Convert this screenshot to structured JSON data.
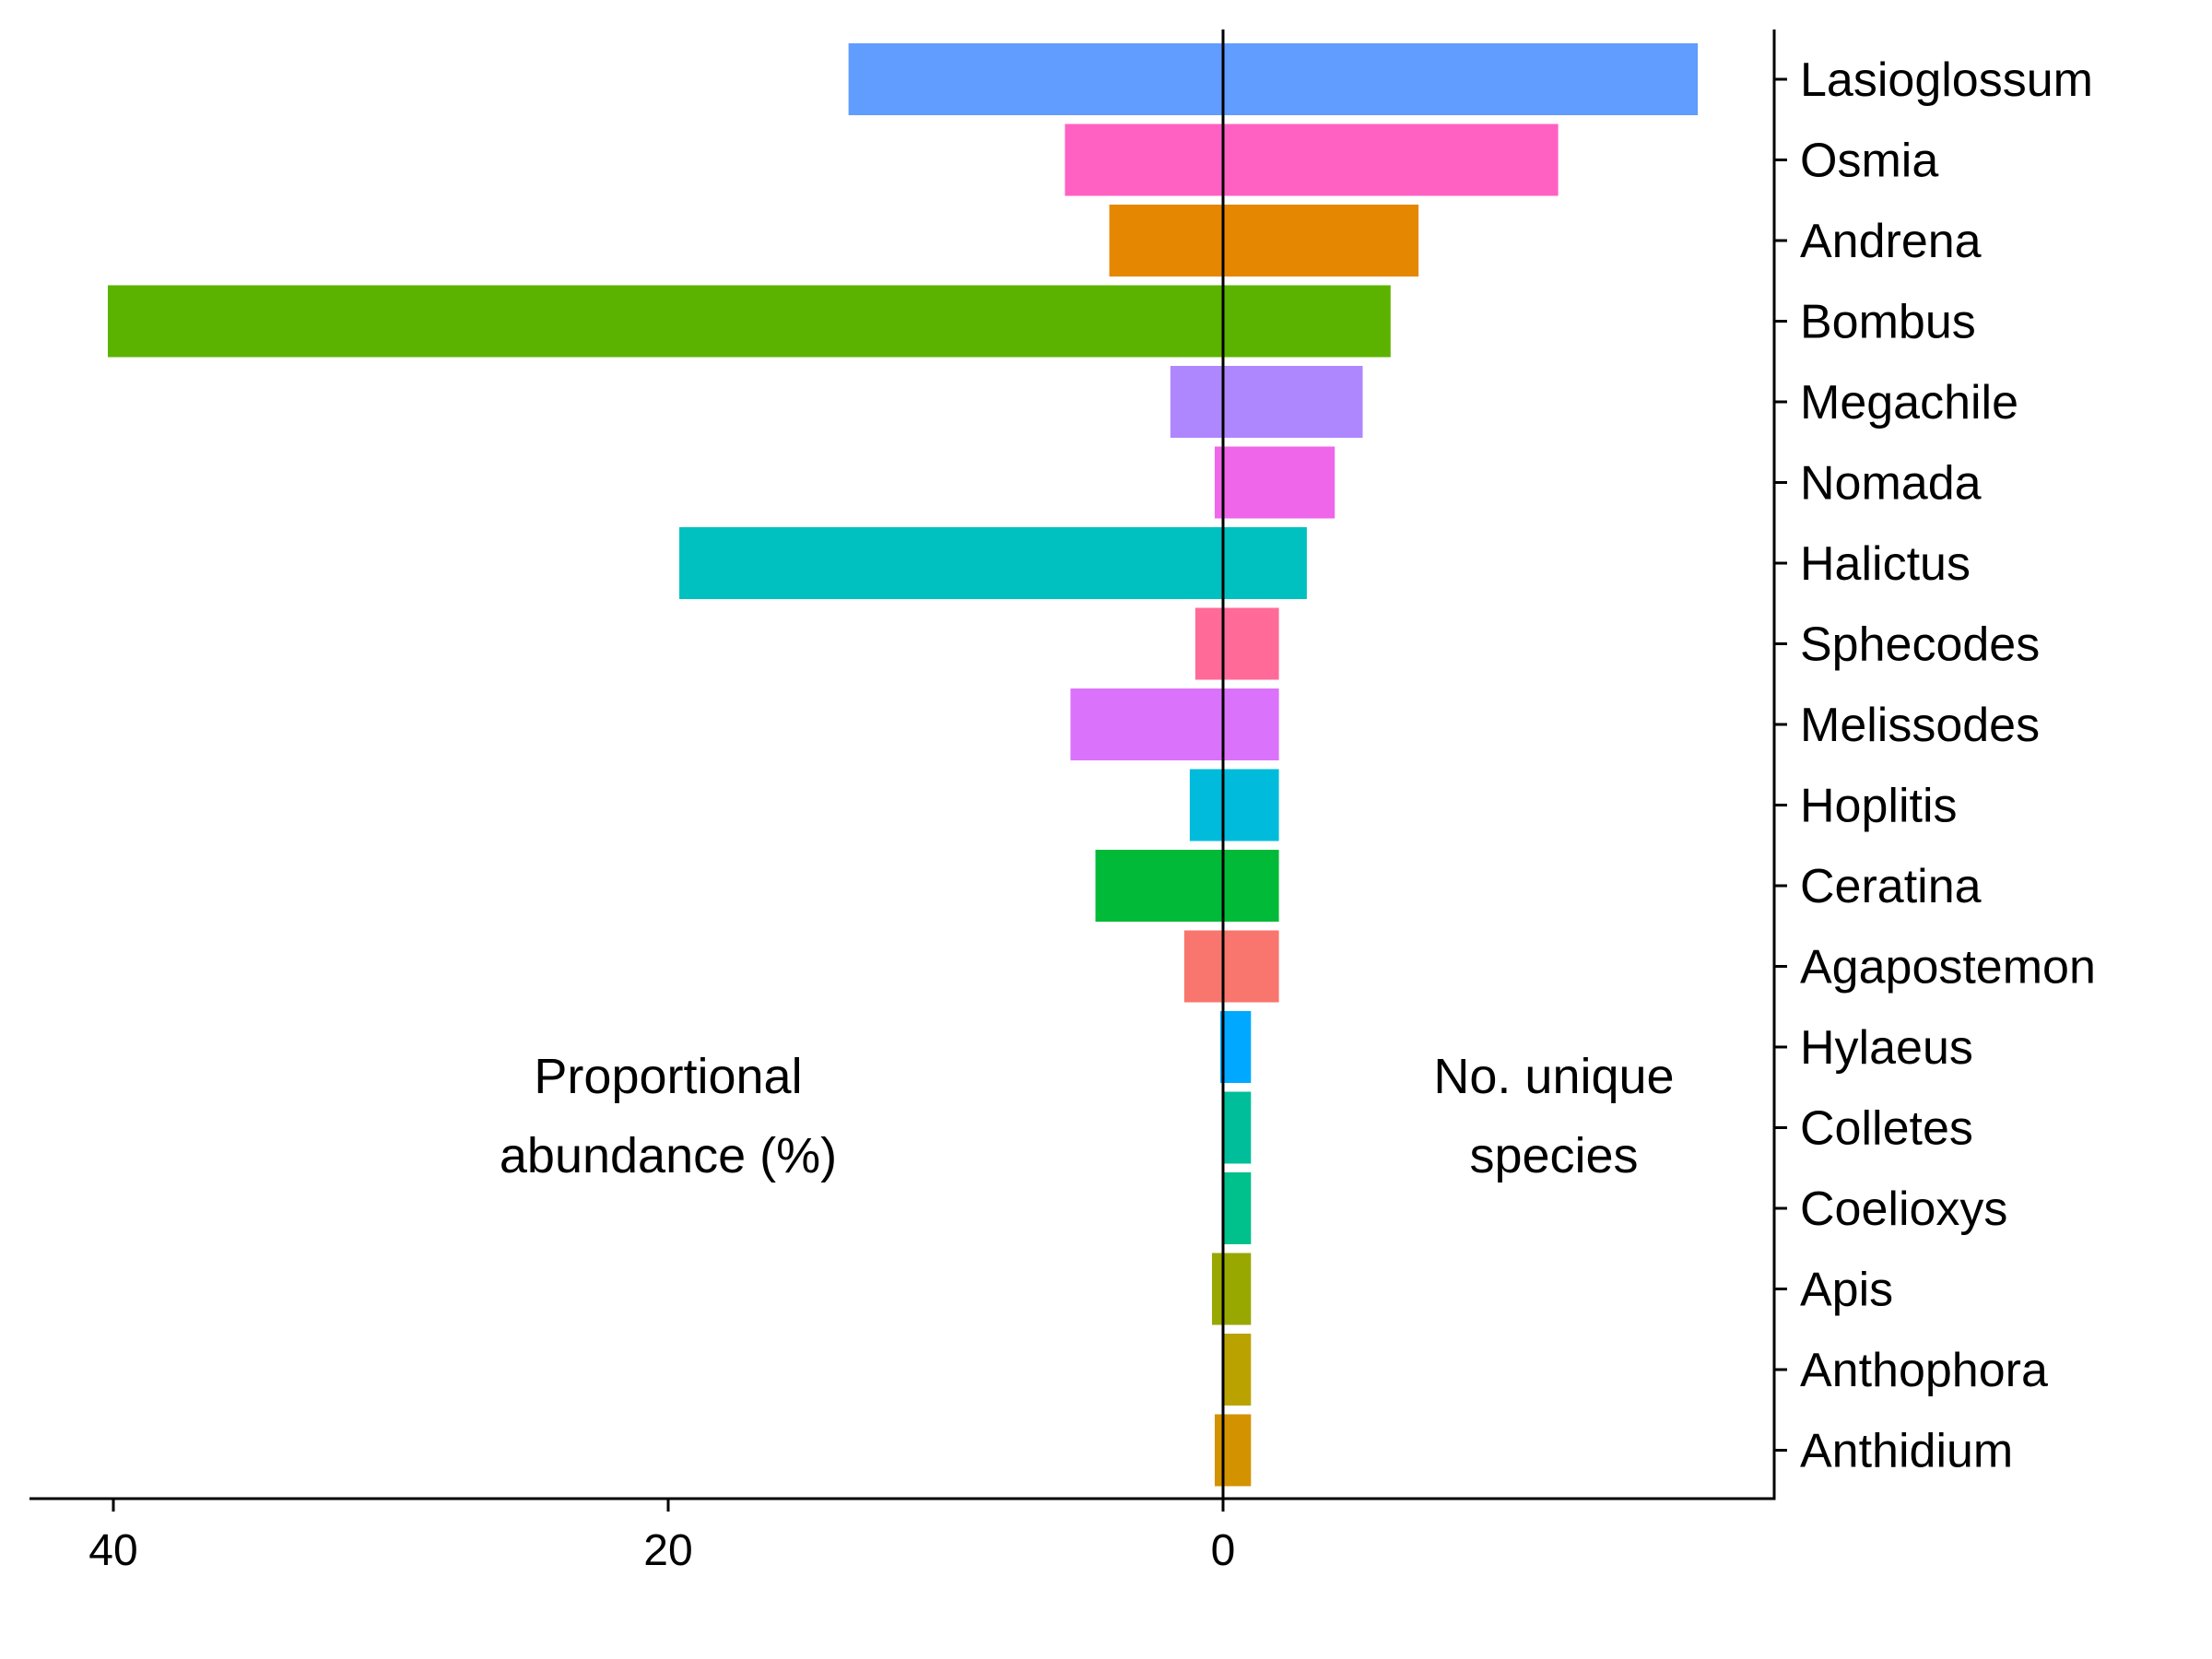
{
  "chart_data": {
    "type": "bar",
    "orientation": "horizontal-diverging",
    "categories": [
      "Lasioglossum",
      "Osmia",
      "Andrena",
      "Bombus",
      "Megachile",
      "Nomada",
      "Halictus",
      "Sphecodes",
      "Melissodes",
      "Hoplitis",
      "Ceratina",
      "Agapostemon",
      "Hylaeus",
      "Colletes",
      "Coelioxys",
      "Apis",
      "Anthophora",
      "Anthidium"
    ],
    "series": [
      {
        "side": "left",
        "values": [
          13.5,
          5.7,
          4.1,
          40.2,
          1.9,
          0.3,
          19.6,
          1.0,
          5.5,
          1.2,
          4.6,
          1.4,
          0.1,
          0.0,
          0.0,
          0.4,
          0.0,
          0.3
        ]
      },
      {
        "side": "right",
        "values": [
          17,
          12,
          7,
          6,
          5,
          4,
          3,
          2,
          2,
          2,
          2,
          2,
          1,
          1,
          1,
          1,
          1,
          1
        ]
      }
    ],
    "colors": [
      "#619CFF",
      "#FF61C3",
      "#E58700",
      "#5BB300",
      "#AE87FF",
      "#F066EA",
      "#00C0C0",
      "#FF6A98",
      "#DB72FB",
      "#00BBDC",
      "#00BA38",
      "#F8766D",
      "#00A9FF",
      "#00BE9A",
      "#00C08B",
      "#99A800",
      "#BAA300",
      "#D39200"
    ],
    "xticks": [
      "40",
      "20",
      "0"
    ],
    "xtick_values": [
      40,
      20,
      0
    ],
    "annotations": {
      "left_line1": "Proportional",
      "left_line2": "abundance (%)",
      "right_line1": "No. unique",
      "right_line2": "species"
    }
  }
}
